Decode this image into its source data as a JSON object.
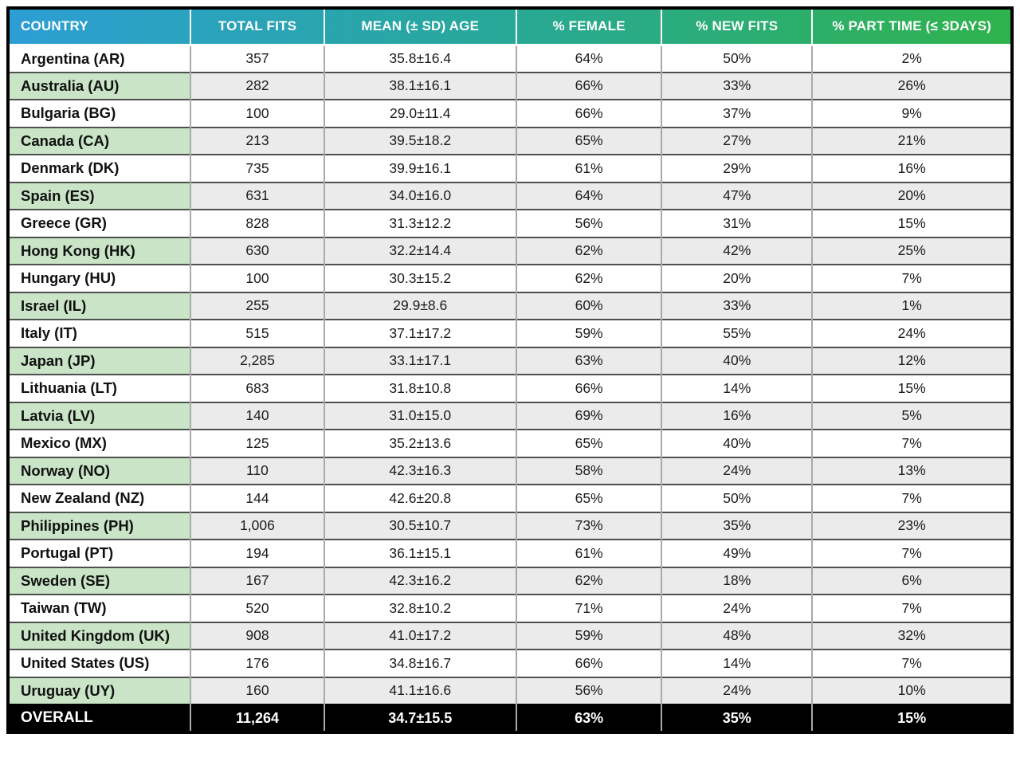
{
  "chart_data": {
    "type": "table",
    "columns": [
      "COUNTRY",
      "TOTAL FITS",
      "MEAN (± SD) AGE",
      "% FEMALE",
      "% NEW FITS",
      "% PART TIME (≤ 3DAYS)"
    ],
    "rows": [
      [
        "Argentina (AR)",
        "357",
        "35.8±16.4",
        "64%",
        "50%",
        "2%"
      ],
      [
        "Australia (AU)",
        "282",
        "38.1±16.1",
        "66%",
        "33%",
        "26%"
      ],
      [
        "Bulgaria (BG)",
        "100",
        "29.0±11.4",
        "66%",
        "37%",
        "9%"
      ],
      [
        "Canada (CA)",
        "213",
        "39.5±18.2",
        "65%",
        "27%",
        "21%"
      ],
      [
        "Denmark (DK)",
        "735",
        "39.9±16.1",
        "61%",
        "29%",
        "16%"
      ],
      [
        "Spain (ES)",
        "631",
        "34.0±16.0",
        "64%",
        "47%",
        "20%"
      ],
      [
        "Greece (GR)",
        "828",
        "31.3±12.2",
        "56%",
        "31%",
        "15%"
      ],
      [
        "Hong Kong (HK)",
        "630",
        "32.2±14.4",
        "62%",
        "42%",
        "25%"
      ],
      [
        "Hungary (HU)",
        "100",
        "30.3±15.2",
        "62%",
        "20%",
        "7%"
      ],
      [
        "Israel (IL)",
        "255",
        "29.9±8.6",
        "60%",
        "33%",
        "1%"
      ],
      [
        "Italy (IT)",
        "515",
        "37.1±17.2",
        "59%",
        "55%",
        "24%"
      ],
      [
        "Japan (JP)",
        "2,285",
        "33.1±17.1",
        "63%",
        "40%",
        "12%"
      ],
      [
        "Lithuania (LT)",
        "683",
        "31.8±10.8",
        "66%",
        "14%",
        "15%"
      ],
      [
        "Latvia (LV)",
        "140",
        "31.0±15.0",
        "69%",
        "16%",
        "5%"
      ],
      [
        "Mexico (MX)",
        "125",
        "35.2±13.6",
        "65%",
        "40%",
        "7%"
      ],
      [
        "Norway (NO)",
        "110",
        "42.3±16.3",
        "58%",
        "24%",
        "13%"
      ],
      [
        "New Zealand (NZ)",
        "144",
        "42.6±20.8",
        "65%",
        "50%",
        "7%"
      ],
      [
        "Philippines (PH)",
        "1,006",
        "30.5±10.7",
        "73%",
        "35%",
        "23%"
      ],
      [
        "Portugal (PT)",
        "194",
        "36.1±15.1",
        "61%",
        "49%",
        "7%"
      ],
      [
        "Sweden (SE)",
        "167",
        "42.3±16.2",
        "62%",
        "18%",
        "6%"
      ],
      [
        "Taiwan (TW)",
        "520",
        "32.8±10.2",
        "71%",
        "24%",
        "7%"
      ],
      [
        "United Kingdom (UK)",
        "908",
        "41.0±17.2",
        "59%",
        "48%",
        "32%"
      ],
      [
        "United States (US)",
        "176",
        "34.8±16.7",
        "66%",
        "14%",
        "7%"
      ],
      [
        "Uruguay (UY)",
        "160",
        "41.1±16.6",
        "56%",
        "24%",
        "10%"
      ]
    ],
    "overall_row": [
      "OVERALL",
      "11,264",
      "34.7±15.5",
      "63%",
      "35%",
      "15%"
    ],
    "layout_hints": {
      "striping": "even rows tinted: country cell green, value cells gray",
      "overall_row_style": "black background, white bold text"
    }
  },
  "colors": {
    "header_blue": "#2d9ed4",
    "header_teal": "#28a79e",
    "header_green": "#2fb34c",
    "row_green": "#c9e4c6",
    "row_gray": "#ebebeb",
    "border_dark": "#4f4f4f",
    "border_light": "#a9a9a9",
    "overall_bg": "#000000",
    "header_text": "#ffffff"
  }
}
